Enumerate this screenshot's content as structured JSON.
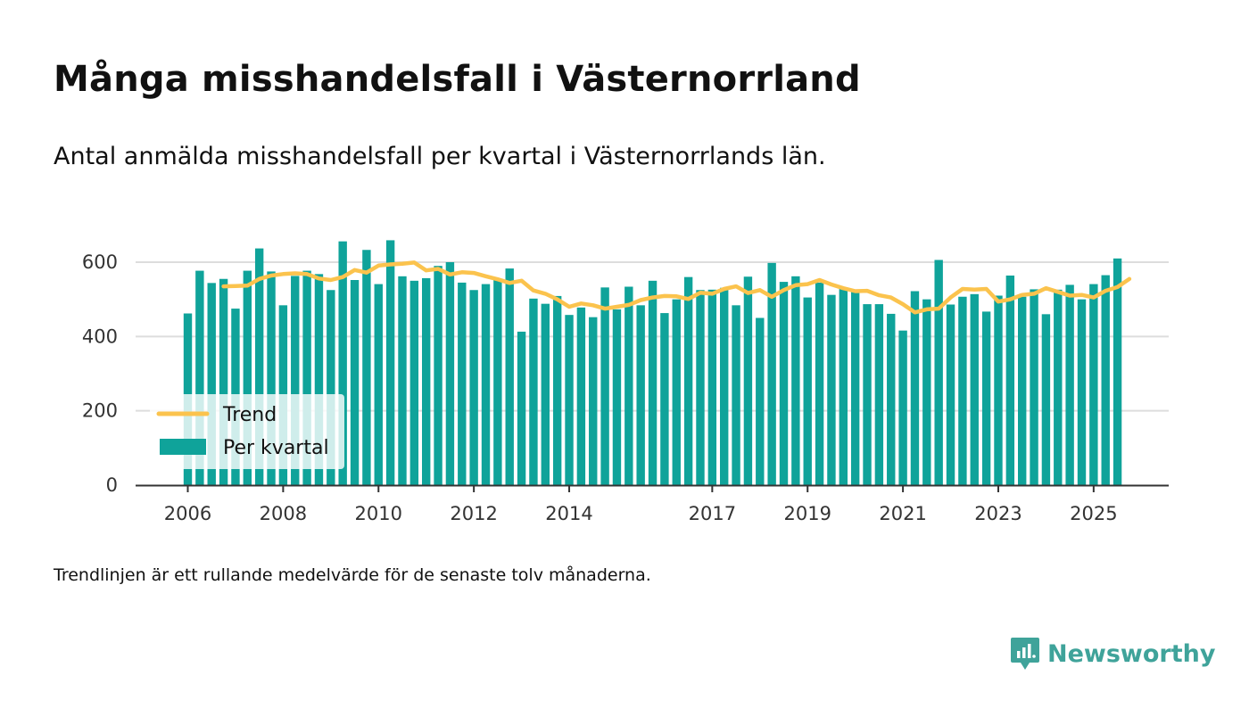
{
  "header": {
    "title": "Många misshandelsfall i Västernorrland",
    "subtitle": "Antal anmälda misshandelsfall per kvartal i Västernorrlands län."
  },
  "footer": {
    "note": "Trendlinjen är ett rullande medelvärde för de senaste tolv månaderna.",
    "brand": "Newsworthy"
  },
  "colors": {
    "bar": "#0fa39a",
    "trend": "#fbc34d",
    "grid": "#dddddd",
    "axis": "#333333",
    "brand": "#3fa39a"
  },
  "chart_data": {
    "type": "bar",
    "title": "Många misshandelsfall i Västernorrland",
    "subtitle": "Antal anmälda misshandelsfall per kvartal i Västernorrlands län.",
    "xlabel": "",
    "ylabel": "",
    "ylim": [
      0,
      700
    ],
    "yticks": [
      0,
      200,
      400,
      600
    ],
    "grid": true,
    "legend_position": "bottom-left",
    "x_start": {
      "year": 2006,
      "quarter": 1
    },
    "xtick_labels": [
      "2006",
      "2008",
      "2010",
      "2012",
      "2014",
      "2017",
      "2019",
      "2021",
      "2023",
      "2025"
    ],
    "xtick_quarter_index": [
      0,
      8,
      16,
      24,
      32,
      44,
      52,
      60,
      68,
      76
    ],
    "series": [
      {
        "name": "Per kvartal",
        "type": "bar",
        "values": [
          462,
          577,
          544,
          555,
          475,
          577,
          637,
          575,
          484,
          563,
          577,
          568,
          525,
          656,
          552,
          633,
          541,
          659,
          562,
          550,
          557,
          590,
          600,
          545,
          525,
          541,
          553,
          583,
          413,
          502,
          488,
          509,
          458,
          478,
          452,
          532,
          473,
          534,
          484,
          550,
          463,
          500,
          560,
          525,
          526,
          531,
          484,
          561,
          450,
          598,
          547,
          562,
          505,
          545,
          512,
          530,
          521,
          487,
          487,
          461,
          416,
          522,
          500,
          606,
          486,
          507,
          514,
          467,
          510,
          564,
          507,
          527,
          460,
          526,
          539,
          500,
          541,
          565,
          610
        ]
      },
      {
        "name": "Trend",
        "type": "line",
        "start_index": 3,
        "values": [
          535,
          536,
          537,
          555,
          564,
          568,
          570,
          568,
          556,
          552,
          560,
          579,
          572,
          591,
          594,
          596,
          599,
          578,
          582,
          567,
          573,
          571,
          562,
          554,
          544,
          550,
          524,
          515,
          500,
          480,
          489,
          484,
          475,
          480,
          485,
          498,
          505,
          509,
          508,
          501,
          518,
          515,
          528,
          535,
          517,
          525,
          507,
          525,
          538,
          541,
          552,
          540,
          530,
          522,
          523,
          511,
          505,
          487,
          465,
          473,
          475,
          505,
          528,
          526,
          528,
          494,
          500,
          512,
          515,
          530,
          520,
          510,
          512,
          505,
          523,
          533,
          555
        ]
      }
    ]
  }
}
